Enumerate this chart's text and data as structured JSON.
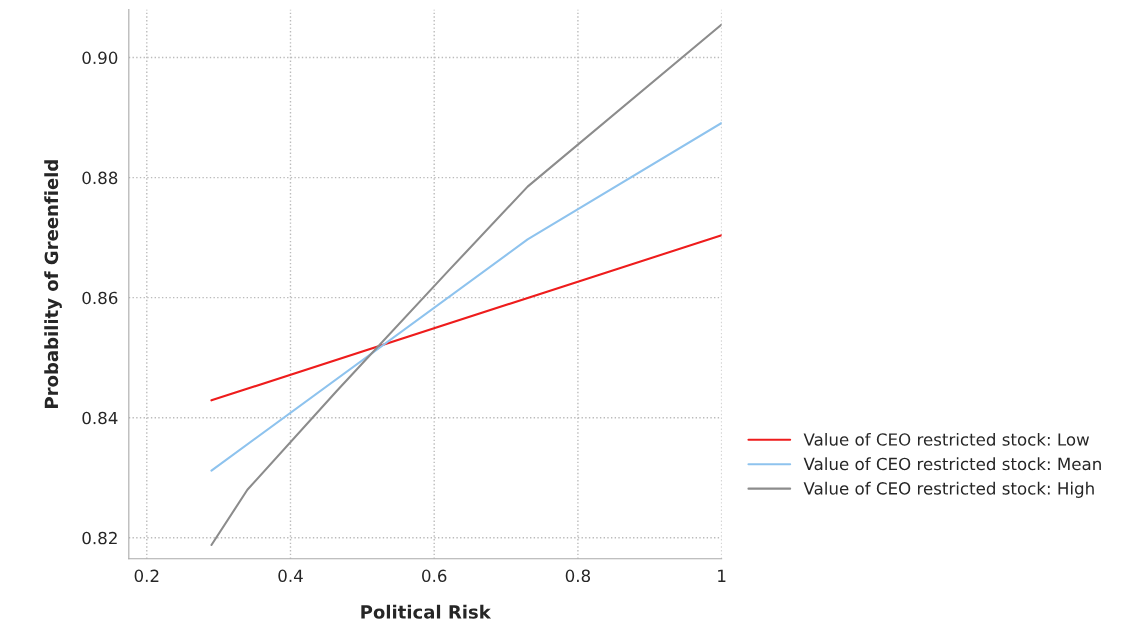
{
  "chart_data": {
    "type": "line",
    "xlabel": "Political Risk",
    "ylabel": "Probability of Greenfield",
    "xlim": [
      0.175,
      1.0
    ],
    "ylim": [
      0.8165,
      0.908
    ],
    "xticks": [
      0.2,
      0.4,
      0.6,
      0.8,
      1
    ],
    "yticks": [
      0.82,
      0.84,
      0.86,
      0.88,
      {
        "value": 0.9,
        "label": "0.90"
      }
    ],
    "grid": true,
    "legend": "right",
    "line_style": "solid",
    "marker": "none",
    "series": [
      {
        "name": "Value of CEO restricted stock: Low",
        "color": "#ee1c1c",
        "x": [
          0.29,
          1.0
        ],
        "values": [
          0.8429,
          0.8704
        ]
      },
      {
        "name": "Value of CEO restricted stock: Mean",
        "color": "#8ec3ee",
        "x": [
          0.29,
          0.73,
          1.0
        ],
        "values": [
          0.8312,
          0.8697,
          0.8891
        ]
      },
      {
        "name": "Value of CEO restricted stock: High",
        "color": "#8c8c8c",
        "x": [
          0.29,
          0.34,
          0.464,
          0.62,
          0.73,
          1.0
        ],
        "values": [
          0.8188,
          0.828,
          0.8444,
          0.8645,
          0.8785,
          0.9055
        ]
      }
    ]
  }
}
